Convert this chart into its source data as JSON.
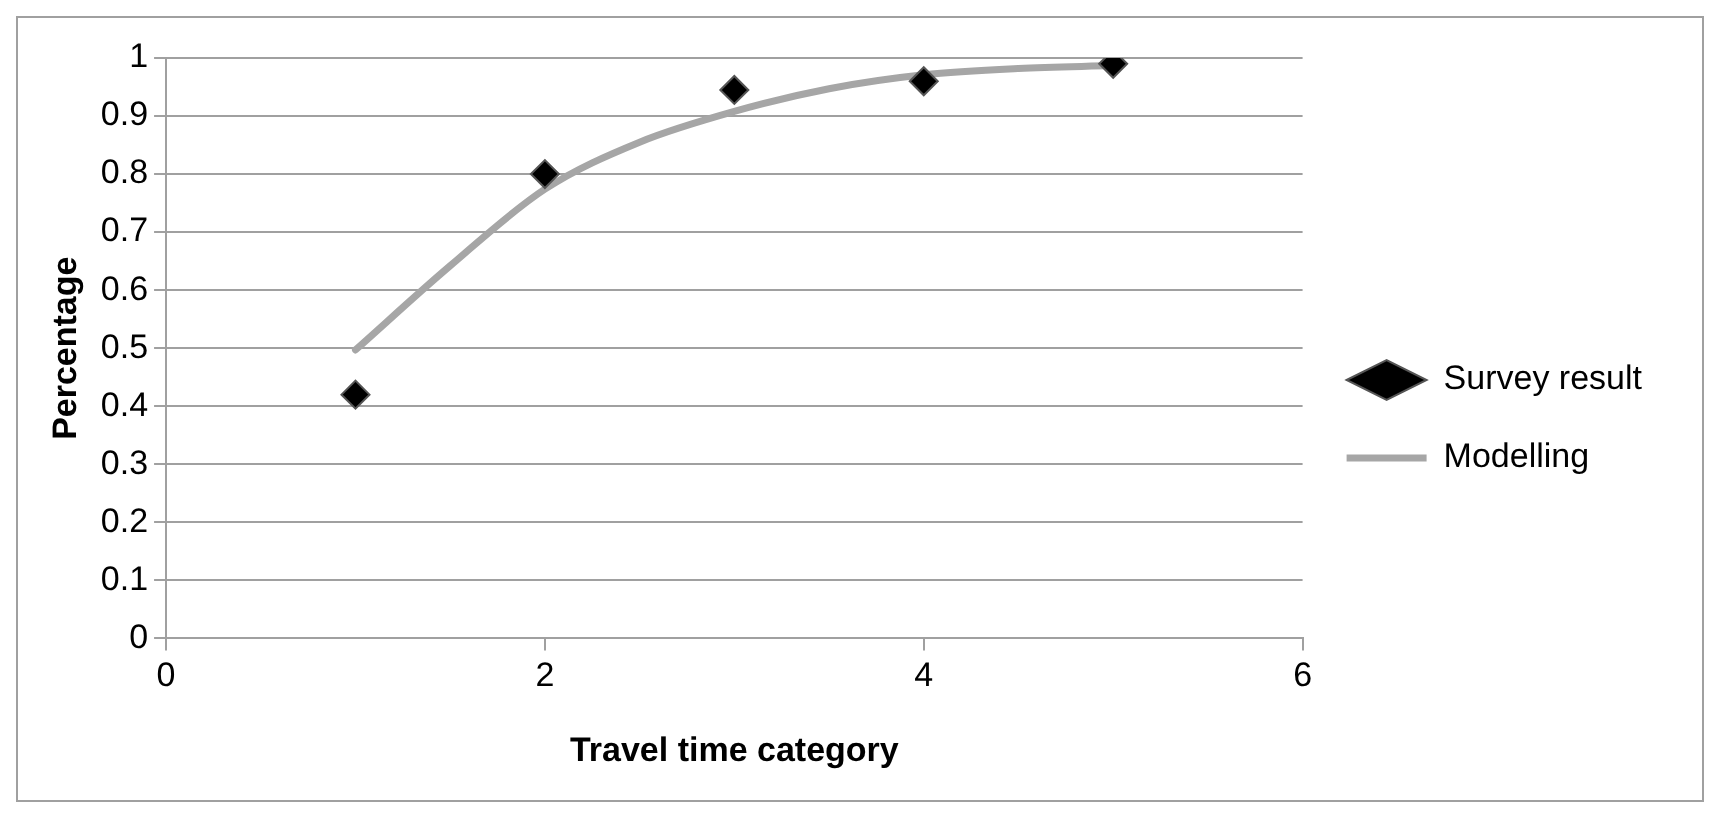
{
  "chart_data": {
    "type": "scatter",
    "xlabel": "Travel time category",
    "ylabel": "Percentage",
    "xlim": [
      0,
      6
    ],
    "xticks": [
      0,
      2,
      4,
      6
    ],
    "ylim": [
      0,
      1
    ],
    "yticks": [
      0,
      0.1,
      0.2,
      0.3,
      0.4,
      0.5,
      0.6,
      0.7,
      0.8,
      0.9,
      1
    ],
    "grid": "y",
    "legend": "right",
    "marker": "diamond",
    "series": [
      {
        "name": "Survey result",
        "type": "scatter",
        "color": "#000000",
        "x": [
          1,
          2,
          3,
          4,
          5
        ],
        "values": [
          0.42,
          0.8,
          0.945,
          0.96,
          0.99
        ]
      },
      {
        "name": "Modelling",
        "type": "line",
        "color": "#a6a6a6",
        "marker": "none",
        "x": [
          1,
          1.5,
          2,
          2.5,
          3,
          3.5,
          4,
          4.5,
          5
        ],
        "values": [
          0.497,
          0.642,
          0.774,
          0.855,
          0.908,
          0.947,
          0.971,
          0.982,
          0.987
        ]
      }
    ]
  }
}
